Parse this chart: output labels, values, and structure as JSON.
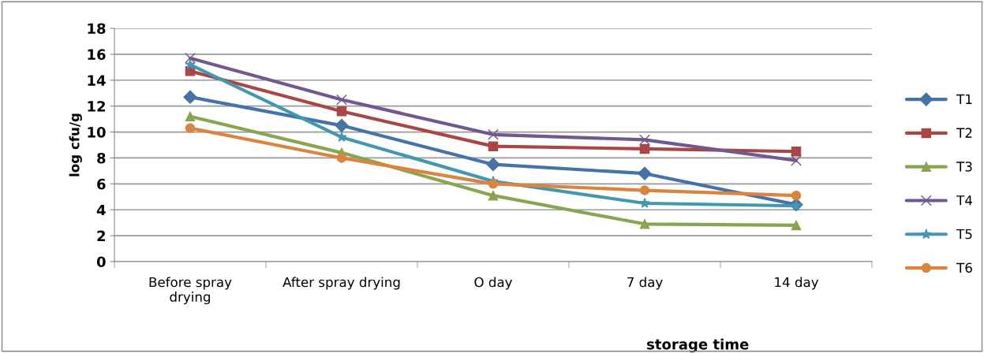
{
  "chart_data": {
    "type": "line",
    "xlabel": "storage time",
    "ylabel": "log cfu/g",
    "categories": [
      "Before spray\ndrying",
      "After spray drying",
      "O day",
      "7 day",
      "14 day"
    ],
    "series": [
      {
        "name": "T1",
        "color": "#4572a7",
        "marker": "diamond",
        "values": [
          12.7,
          10.5,
          7.5,
          6.8,
          4.4
        ]
      },
      {
        "name": "T2",
        "color": "#aa4643",
        "marker": "square",
        "values": [
          14.7,
          11.6,
          8.9,
          8.7,
          8.5
        ]
      },
      {
        "name": "T3",
        "color": "#89a54e",
        "marker": "triangle",
        "values": [
          11.2,
          8.4,
          5.1,
          2.9,
          2.8
        ]
      },
      {
        "name": "T4",
        "color": "#71588f",
        "marker": "cross",
        "values": [
          15.7,
          12.5,
          9.8,
          9.4,
          7.8
        ]
      },
      {
        "name": "T5",
        "color": "#4198af",
        "marker": "star",
        "values": [
          15.2,
          9.6,
          6.2,
          4.5,
          4.3
        ]
      },
      {
        "name": "T6",
        "color": "#db843d",
        "marker": "circle",
        "values": [
          10.3,
          8.0,
          6.0,
          5.5,
          5.1
        ]
      }
    ],
    "ylim": [
      0,
      18
    ],
    "yticks": [
      0,
      2,
      4,
      6,
      8,
      10,
      12,
      14,
      16,
      18
    ],
    "grid": "y",
    "legend": "right"
  }
}
